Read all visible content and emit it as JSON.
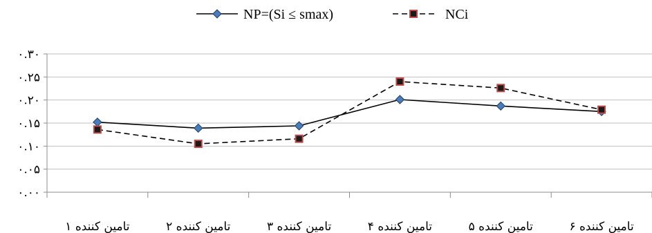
{
  "chart_data": {
    "type": "line",
    "categories": [
      "تامین کننده ۱",
      "تامین کننده ۲",
      "تامین کننده ۳",
      "تامین کننده ۴",
      "تامین کننده ۵",
      "تامین کننده ۶"
    ],
    "ylim": [
      0,
      0.3
    ],
    "yticks": [
      0.0,
      0.05,
      0.1,
      0.15,
      0.2,
      0.25,
      0.3
    ],
    "ytick_labels": [
      "۰.۰۰",
      "۰.۰۵",
      "۰.۱۰",
      "۰.۱۵",
      "۰.۲۰",
      "۰.۲۵",
      "۰.۳۰"
    ],
    "grid": true,
    "legend_position": "top-center",
    "series": [
      {
        "name": "NP=(Si ≤ smax)",
        "values": [
          0.152,
          0.139,
          0.144,
          0.201,
          0.187,
          0.175
        ],
        "style": "solid",
        "marker": "diamond",
        "color": "#000000",
        "marker_color": "#4a7ebb"
      },
      {
        "name": "NCi",
        "values": [
          0.136,
          0.105,
          0.116,
          0.24,
          0.226,
          0.179
        ],
        "style": "dashed",
        "marker": "square",
        "color": "#000000",
        "marker_color": "#be4b48"
      }
    ]
  }
}
